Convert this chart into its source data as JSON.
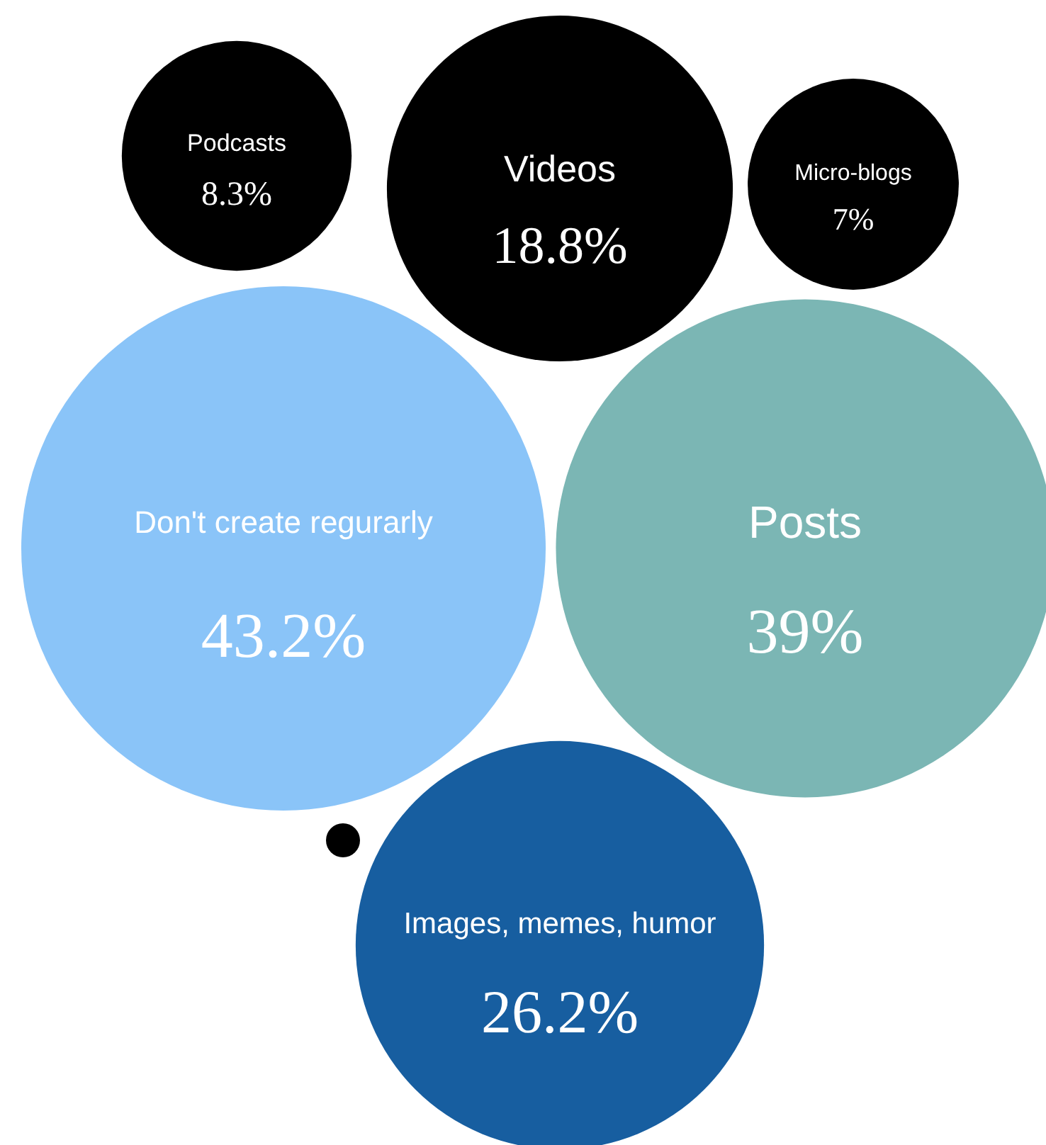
{
  "chart_data": {
    "type": "other",
    "categories": [
      "Podcasts",
      "Videos",
      "Micro-blogs",
      "Don't create regurarly",
      "Posts",
      "Images, memes, humor"
    ],
    "values": [
      8.3,
      18.8,
      7,
      43.2,
      39,
      26.2
    ],
    "value_labels": [
      "8.3%",
      "18.8%",
      "7%",
      "43.2%",
      "39%",
      "26.2%"
    ],
    "colors": [
      "#000000",
      "#000000",
      "#000000",
      "#8ac4f8",
      "#7bb6b4",
      "#175ea0"
    ]
  }
}
